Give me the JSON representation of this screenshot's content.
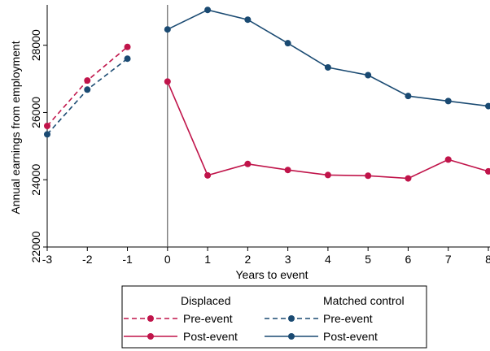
{
  "chart_data": {
    "type": "line",
    "title": "",
    "xlabel": "Years to event",
    "ylabel": "Annual earnings from employment",
    "xlim": [
      -3,
      8
    ],
    "ylim": [
      22000,
      29200
    ],
    "x_ticks": [
      "-3",
      "-2",
      "-1",
      "0",
      "1",
      "2",
      "3",
      "4",
      "5",
      "6",
      "7",
      "8"
    ],
    "y_ticks": [
      "22000",
      "24000",
      "26000",
      "28000"
    ],
    "event_line_x": 0,
    "grid": false,
    "legend": {
      "position": "bottom",
      "group_displaced": "Displaced",
      "group_control": "Matched control",
      "pre_label": "Pre-event",
      "post_label": "Post-event"
    },
    "colors": {
      "displaced": "#c0144a",
      "control": "#1a4a72"
    },
    "series": [
      {
        "group": "displaced",
        "period": "pre",
        "style": "dashed",
        "x": [
          -3,
          -2,
          -1
        ],
        "values": [
          25600,
          26950,
          27950
        ]
      },
      {
        "group": "control",
        "period": "pre",
        "style": "dashed",
        "x": [
          -3,
          -2,
          -1
        ],
        "values": [
          25350,
          26680,
          27600
        ]
      },
      {
        "group": "displaced",
        "period": "post",
        "style": "solid",
        "x": [
          0,
          1,
          2,
          3,
          4,
          5,
          6,
          7,
          8
        ],
        "values": [
          26920,
          24130,
          24470,
          24290,
          24140,
          24120,
          24040,
          24600,
          24250
        ]
      },
      {
        "group": "control",
        "period": "post",
        "style": "solid",
        "x": [
          0,
          1,
          2,
          3,
          4,
          5,
          6,
          7,
          8
        ],
        "values": [
          28470,
          29050,
          28760,
          28060,
          27340,
          27110,
          26490,
          26340,
          26190
        ]
      }
    ]
  }
}
